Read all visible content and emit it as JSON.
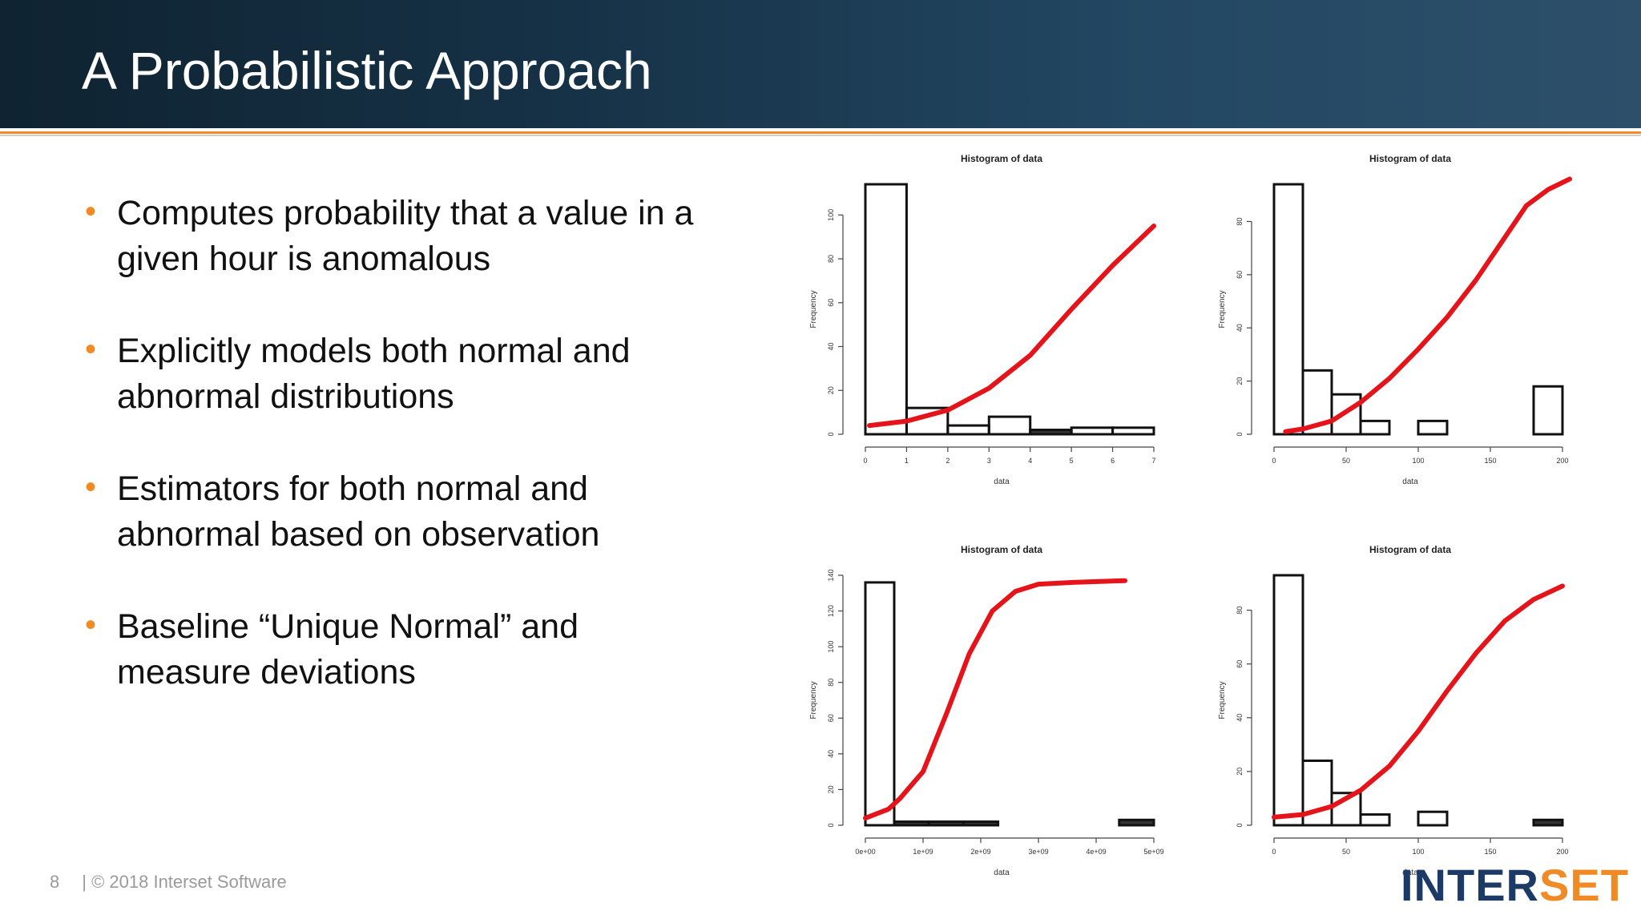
{
  "slide": {
    "title": "A Probabilistic Approach",
    "bullets": [
      {
        "line1": "Computes probability that a value in a",
        "line2": "given hour is anomalous"
      },
      {
        "line1": "Explicitly models both normal and",
        "line2": "abnormal distributions"
      },
      {
        "line1": "Estimators for both normal and",
        "line2": "abnormal based on observation"
      },
      {
        "line1": "Baseline “Unique Normal” and",
        "line2": "measure deviations"
      }
    ],
    "footer": {
      "page": "8",
      "copyright": "| © 2018 Interset Software"
    },
    "logo": {
      "part1": "INTER",
      "part2": "SET"
    }
  },
  "colors": {
    "accent": "#f08a24",
    "curve": "#e5141b",
    "brand": "#1b3a66"
  },
  "chart_data": [
    {
      "type": "bar",
      "title": "Histogram of data",
      "xlabel": "data",
      "ylabel": "Frequency",
      "xlim": [
        0,
        7
      ],
      "ylim": [
        0,
        114
      ],
      "xticks": [
        0,
        1,
        2,
        3,
        4,
        5,
        6,
        7
      ],
      "xtick_labels": [
        "0",
        "1",
        "2",
        "3",
        "4",
        "5",
        "6",
        "7"
      ],
      "yticks": [
        0,
        20,
        40,
        60,
        80,
        100
      ],
      "bins": [
        [
          0,
          1
        ],
        [
          1,
          2
        ],
        [
          2,
          3
        ],
        [
          3,
          4
        ],
        [
          4,
          5
        ],
        [
          5,
          6
        ],
        [
          6,
          7
        ]
      ],
      "values": [
        114,
        12,
        4,
        8,
        2,
        3,
        3
      ],
      "curve": {
        "x": [
          0.1,
          1,
          2,
          3,
          4,
          5,
          6,
          7
        ],
        "y": [
          4,
          6,
          11,
          21,
          36,
          57,
          77,
          95
        ]
      }
    },
    {
      "type": "bar",
      "title": "Histogram of data",
      "xlabel": "data",
      "ylabel": "Frequency",
      "xlim": [
        0,
        200
      ],
      "ylim": [
        0,
        94
      ],
      "xticks": [
        0,
        50,
        100,
        150,
        200
      ],
      "xtick_labels": [
        "0",
        "50",
        "100",
        "150",
        "200"
      ],
      "yticks": [
        0,
        20,
        40,
        60,
        80
      ],
      "bins": [
        [
          0,
          20
        ],
        [
          20,
          40
        ],
        [
          40,
          60
        ],
        [
          60,
          80
        ],
        [
          100,
          120
        ],
        [
          180,
          200
        ]
      ],
      "values": [
        94,
        24,
        15,
        5,
        5,
        18
      ],
      "curve": {
        "x": [
          8,
          20,
          40,
          60,
          80,
          100,
          120,
          140,
          160,
          175,
          190,
          205
        ],
        "y": [
          1,
          2,
          5,
          12,
          21,
          32,
          44,
          58,
          74,
          86,
          92,
          96
        ]
      }
    },
    {
      "type": "bar",
      "title": "Histogram of data",
      "xlabel": "data",
      "ylabel": "Frequency",
      "xlim": [
        0,
        5000000000
      ],
      "ylim": [
        0,
        140
      ],
      "xticks": [
        0,
        1000000000,
        2000000000,
        3000000000,
        4000000000,
        5000000000
      ],
      "xtick_labels": [
        "0e+00",
        "1e+09",
        "2e+09",
        "3e+09",
        "4e+09",
        "5e+09"
      ],
      "yticks": [
        0,
        20,
        40,
        60,
        80,
        100,
        120,
        140
      ],
      "bins": [
        [
          0,
          500000000
        ],
        [
          500000000,
          1100000000
        ],
        [
          1100000000,
          1700000000
        ],
        [
          1700000000,
          2300000000
        ],
        [
          4400000000,
          5000000000
        ]
      ],
      "values": [
        136,
        2,
        2,
        2,
        3
      ],
      "curve": {
        "x": [
          0,
          400000000,
          600000000,
          1000000000,
          1400000000,
          1800000000,
          2200000000,
          2600000000,
          3000000000,
          3600000000,
          4500000000
        ],
        "y": [
          4,
          9,
          15,
          30,
          62,
          96,
          120,
          131,
          135,
          136,
          137
        ]
      }
    },
    {
      "type": "bar",
      "title": "Histogram of data",
      "xlabel": "data",
      "ylabel": "Frequency",
      "xlim": [
        0,
        200
      ],
      "ylim": [
        0,
        93
      ],
      "xticks": [
        0,
        50,
        100,
        150,
        200
      ],
      "xtick_labels": [
        "0",
        "50",
        "100",
        "150",
        "200"
      ],
      "yticks": [
        0,
        20,
        40,
        60,
        80
      ],
      "bins": [
        [
          0,
          20
        ],
        [
          20,
          40
        ],
        [
          40,
          60
        ],
        [
          60,
          80
        ],
        [
          100,
          120
        ],
        [
          180,
          200
        ]
      ],
      "values": [
        93,
        24,
        12,
        4,
        5,
        2
      ],
      "curve": {
        "x": [
          0,
          20,
          40,
          60,
          80,
          100,
          120,
          140,
          160,
          180,
          200
        ],
        "y": [
          3,
          4,
          7,
          13,
          22,
          35,
          50,
          64,
          76,
          84,
          89
        ]
      }
    }
  ]
}
